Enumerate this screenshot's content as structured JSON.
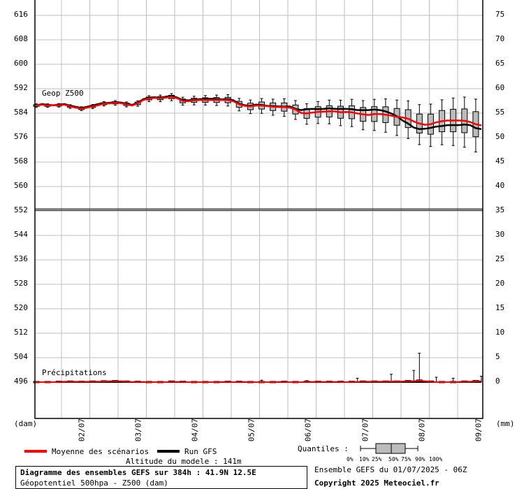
{
  "chart_data": {
    "type": "box-line",
    "geop_label": "Geop Z500",
    "precip_label": "Précipitations",
    "left_axis_unit": "(dam)",
    "right_axis_unit": "(mm)",
    "left_ticks": [
      "616",
      "608",
      "600",
      "592",
      "584",
      "576",
      "568",
      "560",
      "552",
      "544",
      "536",
      "528",
      "520",
      "512",
      "504",
      "496"
    ],
    "left_tick_values": [
      616,
      608,
      600,
      592,
      584,
      576,
      568,
      560,
      552,
      544,
      536,
      528,
      520,
      512,
      504,
      496
    ],
    "right_ticks_upper": [
      "75",
      "70",
      "65",
      "60",
      "55",
      "50",
      "45",
      "40"
    ],
    "right_ticks_upper_values": [
      75,
      70,
      65,
      60,
      55,
      50,
      45,
      40
    ],
    "right_ticks_lower": [
      "35",
      "30",
      "25",
      "20",
      "15",
      "10",
      "5",
      "0"
    ],
    "right_ticks_lower_values": [
      35,
      30,
      25,
      20,
      15,
      10,
      5,
      0
    ],
    "date_labels": [
      "02/07",
      "03/07",
      "04/07",
      "05/07",
      "06/07",
      "07/07",
      "08/07",
      "09/07"
    ],
    "ylim_geop": [
      552,
      617
    ],
    "ylim_precip": [
      0,
      35
    ],
    "geop_mean": [
      586.5,
      586.8,
      586.5,
      586.6,
      586.6,
      586.8,
      586.2,
      585.8,
      585.5,
      585.8,
      586.2,
      586.6,
      587.1,
      587.2,
      587.4,
      587.3,
      586.9,
      586.5,
      587.2,
      588.3,
      588.8,
      589.0,
      588.9,
      589.1,
      589.3,
      588.9,
      588.0,
      587.9,
      588.2,
      588.3,
      588.3,
      588.3,
      588.3,
      588.3,
      588.3,
      587.9,
      586.9,
      586.4,
      586.2,
      586.5,
      586.5,
      586.3,
      586.1,
      586.0,
      586.0,
      585.8,
      585.2,
      584.1,
      583.9,
      584.2,
      584.4,
      584.5,
      584.6,
      584.6,
      584.3,
      584.4,
      584.3,
      583.9,
      583.6,
      583.4,
      583.7,
      583.7,
      583.5,
      583.2,
      582.8,
      582.6,
      582.2,
      581.3,
      580.6,
      580.2,
      580.4,
      581.0,
      581.4,
      581.6,
      581.6,
      581.6,
      581.5,
      581.1,
      580.4,
      580.0
    ],
    "geop_run": [
      586.5,
      587.0,
      586.7,
      586.6,
      586.8,
      587.0,
      586.4,
      586.1,
      585.7,
      586.1,
      586.5,
      587.0,
      587.3,
      587.4,
      587.6,
      587.5,
      587.1,
      586.7,
      587.4,
      588.6,
      589.1,
      589.2,
      589.0,
      589.4,
      589.7,
      589.1,
      588.3,
      588.2,
      588.4,
      588.6,
      588.6,
      588.7,
      588.6,
      588.5,
      588.6,
      588.2,
      587.1,
      586.6,
      586.4,
      586.8,
      586.7,
      586.4,
      586.3,
      586.2,
      586.1,
      586.2,
      585.4,
      585.0,
      585.3,
      585.4,
      585.3,
      585.4,
      585.6,
      585.4,
      585.4,
      585.4,
      585.3,
      585.0,
      585.0,
      585.0,
      585.2,
      585.0,
      584.6,
      583.9,
      583.0,
      581.6,
      580.6,
      579.3,
      578.8,
      578.9,
      579.2,
      579.6,
      579.8,
      580.1,
      580.1,
      580.1,
      580.3,
      580.1,
      579.1,
      578.8
    ],
    "precip_mean": [
      0,
      0,
      0,
      0,
      0.05,
      0.1,
      0.1,
      0.1,
      0.05,
      0.1,
      0.1,
      0.1,
      0.15,
      0.2,
      0.2,
      0.2,
      0.1,
      0.05,
      0.05,
      0.05,
      0,
      0,
      0,
      0,
      0.1,
      0.05,
      0.05,
      0,
      0,
      0,
      0,
      0,
      0,
      0.05,
      0.05,
      0,
      0.05,
      0.05,
      0,
      0,
      0,
      0,
      0,
      0.05,
      0.05,
      0,
      0,
      0,
      0.05,
      0.05,
      0.05,
      0.05,
      0.05,
      0.05,
      0.05,
      0,
      0.05,
      0.05,
      0.1,
      0.1,
      0.1,
      0.1,
      0.1,
      0.15,
      0.1,
      0.15,
      0.2,
      0.2,
      0.3,
      0.2,
      0.1,
      0,
      0,
      0,
      0,
      0.05,
      0.1,
      0.1,
      0.2,
      0.2
    ],
    "legend": [
      "Moyenne des scénarios",
      "Run GFS"
    ],
    "colors": {
      "mean": "#ff0000",
      "run": "#000000",
      "box": "#bcbcbc",
      "grid": "#bfbfbf"
    }
  },
  "legend": {
    "mean_label": "Moyenne des scénarios",
    "run_label": "Run GFS",
    "quantiles_label": "Quantiles :",
    "quantile_ticks": [
      "0%",
      "10%",
      "25%",
      "50%",
      "75%",
      "90%",
      "100%"
    ]
  },
  "footer": {
    "altitude": "Altitude du modele : 141m",
    "title": "Diagramme des ensembles GEFS sur 384h : 41.9N 12.5E",
    "subtitle": "Géopotentiel 500hpa - Z500 (dam)",
    "ensemble": "Ensemble GEFS du 01/07/2025 - 06Z",
    "copyright": "Copyright 2025 Meteociel.fr"
  }
}
